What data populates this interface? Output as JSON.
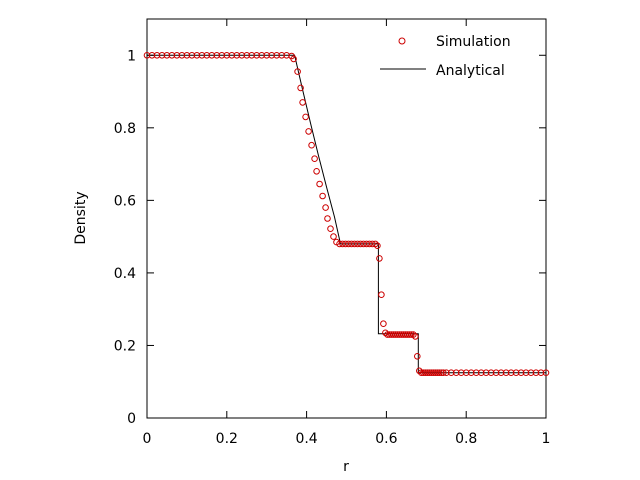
{
  "chart_data": {
    "type": "scatter",
    "xlabel": "r",
    "ylabel": "Density",
    "xlim": [
      0,
      1
    ],
    "ylim": [
      0,
      1.1
    ],
    "x_ticks": [
      0,
      0.2,
      0.4,
      0.6,
      0.8,
      1
    ],
    "x_tick_labels": [
      "0",
      "0.2",
      "0.4",
      "0.6",
      "0.8",
      "1"
    ],
    "y_ticks": [
      0,
      0.2,
      0.4,
      0.6,
      0.8,
      1
    ],
    "y_tick_labels": [
      "0",
      "0.2",
      "0.4",
      "0.6",
      "0.8",
      "1"
    ],
    "grid": false,
    "legend_position": "top-right",
    "series": [
      {
        "name": "Simulation",
        "style": "open-circle-markers",
        "color": "#cc0000",
        "x": [
          0,
          0.0125,
          0.025,
          0.0375,
          0.05,
          0.0625,
          0.075,
          0.0875,
          0.1,
          0.1125,
          0.125,
          0.1375,
          0.15,
          0.1625,
          0.175,
          0.1875,
          0.2,
          0.2125,
          0.225,
          0.2375,
          0.25,
          0.2625,
          0.275,
          0.2875,
          0.3,
          0.3125,
          0.325,
          0.3375,
          0.35,
          0.3625,
          0.3675,
          0.3775,
          0.385,
          0.39,
          0.3975,
          0.405,
          0.4125,
          0.42,
          0.425,
          0.4325,
          0.44,
          0.4475,
          0.4525,
          0.46,
          0.4675,
          0.475,
          0.4825,
          0.49,
          0.4975,
          0.505,
          0.5125,
          0.52,
          0.5275,
          0.535,
          0.5425,
          0.55,
          0.5575,
          0.565,
          0.5725,
          0.5775,
          0.5825,
          0.5875,
          0.5925,
          0.5975,
          0.6025,
          0.6075,
          0.6125,
          0.6175,
          0.6225,
          0.6275,
          0.6325,
          0.6375,
          0.6425,
          0.6475,
          0.6525,
          0.6575,
          0.6625,
          0.6675,
          0.6725,
          0.6775,
          0.6825,
          0.6875,
          0.6925,
          0.6975,
          0.7025,
          0.7075,
          0.7125,
          0.7175,
          0.7225,
          0.7275,
          0.7325,
          0.7375,
          0.7425,
          0.75,
          0.7625,
          0.775,
          0.7875,
          0.8,
          0.8125,
          0.825,
          0.8375,
          0.85,
          0.8625,
          0.875,
          0.8875,
          0.9,
          0.9125,
          0.925,
          0.9375,
          0.95,
          0.9625,
          0.975,
          0.9875,
          1.0
        ],
        "y": [
          1,
          1,
          1,
          1,
          1,
          1,
          1,
          1,
          1,
          1,
          1,
          1,
          1,
          1,
          1,
          1,
          1,
          1,
          1,
          1,
          1,
          1,
          1,
          1,
          1,
          1,
          1,
          1,
          1,
          0.998,
          0.99,
          0.955,
          0.91,
          0.87,
          0.83,
          0.79,
          0.752,
          0.715,
          0.68,
          0.645,
          0.612,
          0.58,
          0.55,
          0.522,
          0.5,
          0.485,
          0.48,
          0.48,
          0.48,
          0.48,
          0.48,
          0.48,
          0.48,
          0.48,
          0.48,
          0.48,
          0.48,
          0.48,
          0.48,
          0.475,
          0.44,
          0.34,
          0.26,
          0.235,
          0.23,
          0.23,
          0.23,
          0.23,
          0.23,
          0.23,
          0.23,
          0.23,
          0.23,
          0.23,
          0.23,
          0.23,
          0.23,
          0.23,
          0.225,
          0.17,
          0.13,
          0.125,
          0.125,
          0.125,
          0.125,
          0.125,
          0.125,
          0.125,
          0.125,
          0.125,
          0.125,
          0.125,
          0.125,
          0.125,
          0.125,
          0.125,
          0.125,
          0.125,
          0.125,
          0.125,
          0.125,
          0.125,
          0.125,
          0.125,
          0.125,
          0.125,
          0.125,
          0.125,
          0.125,
          0.125,
          0.125,
          0.125,
          0.125,
          0.125
        ]
      },
      {
        "name": "Analytical",
        "style": "line",
        "color": "#000000",
        "x": [
          0,
          0.37,
          0.39,
          0.41,
          0.43,
          0.45,
          0.47,
          0.485,
          0.58,
          0.58,
          0.68,
          0.68,
          1
        ],
        "y": [
          1,
          1,
          0.905,
          0.812,
          0.722,
          0.636,
          0.554,
          0.48,
          0.48,
          0.232,
          0.232,
          0.125,
          0.125
        ]
      }
    ]
  }
}
